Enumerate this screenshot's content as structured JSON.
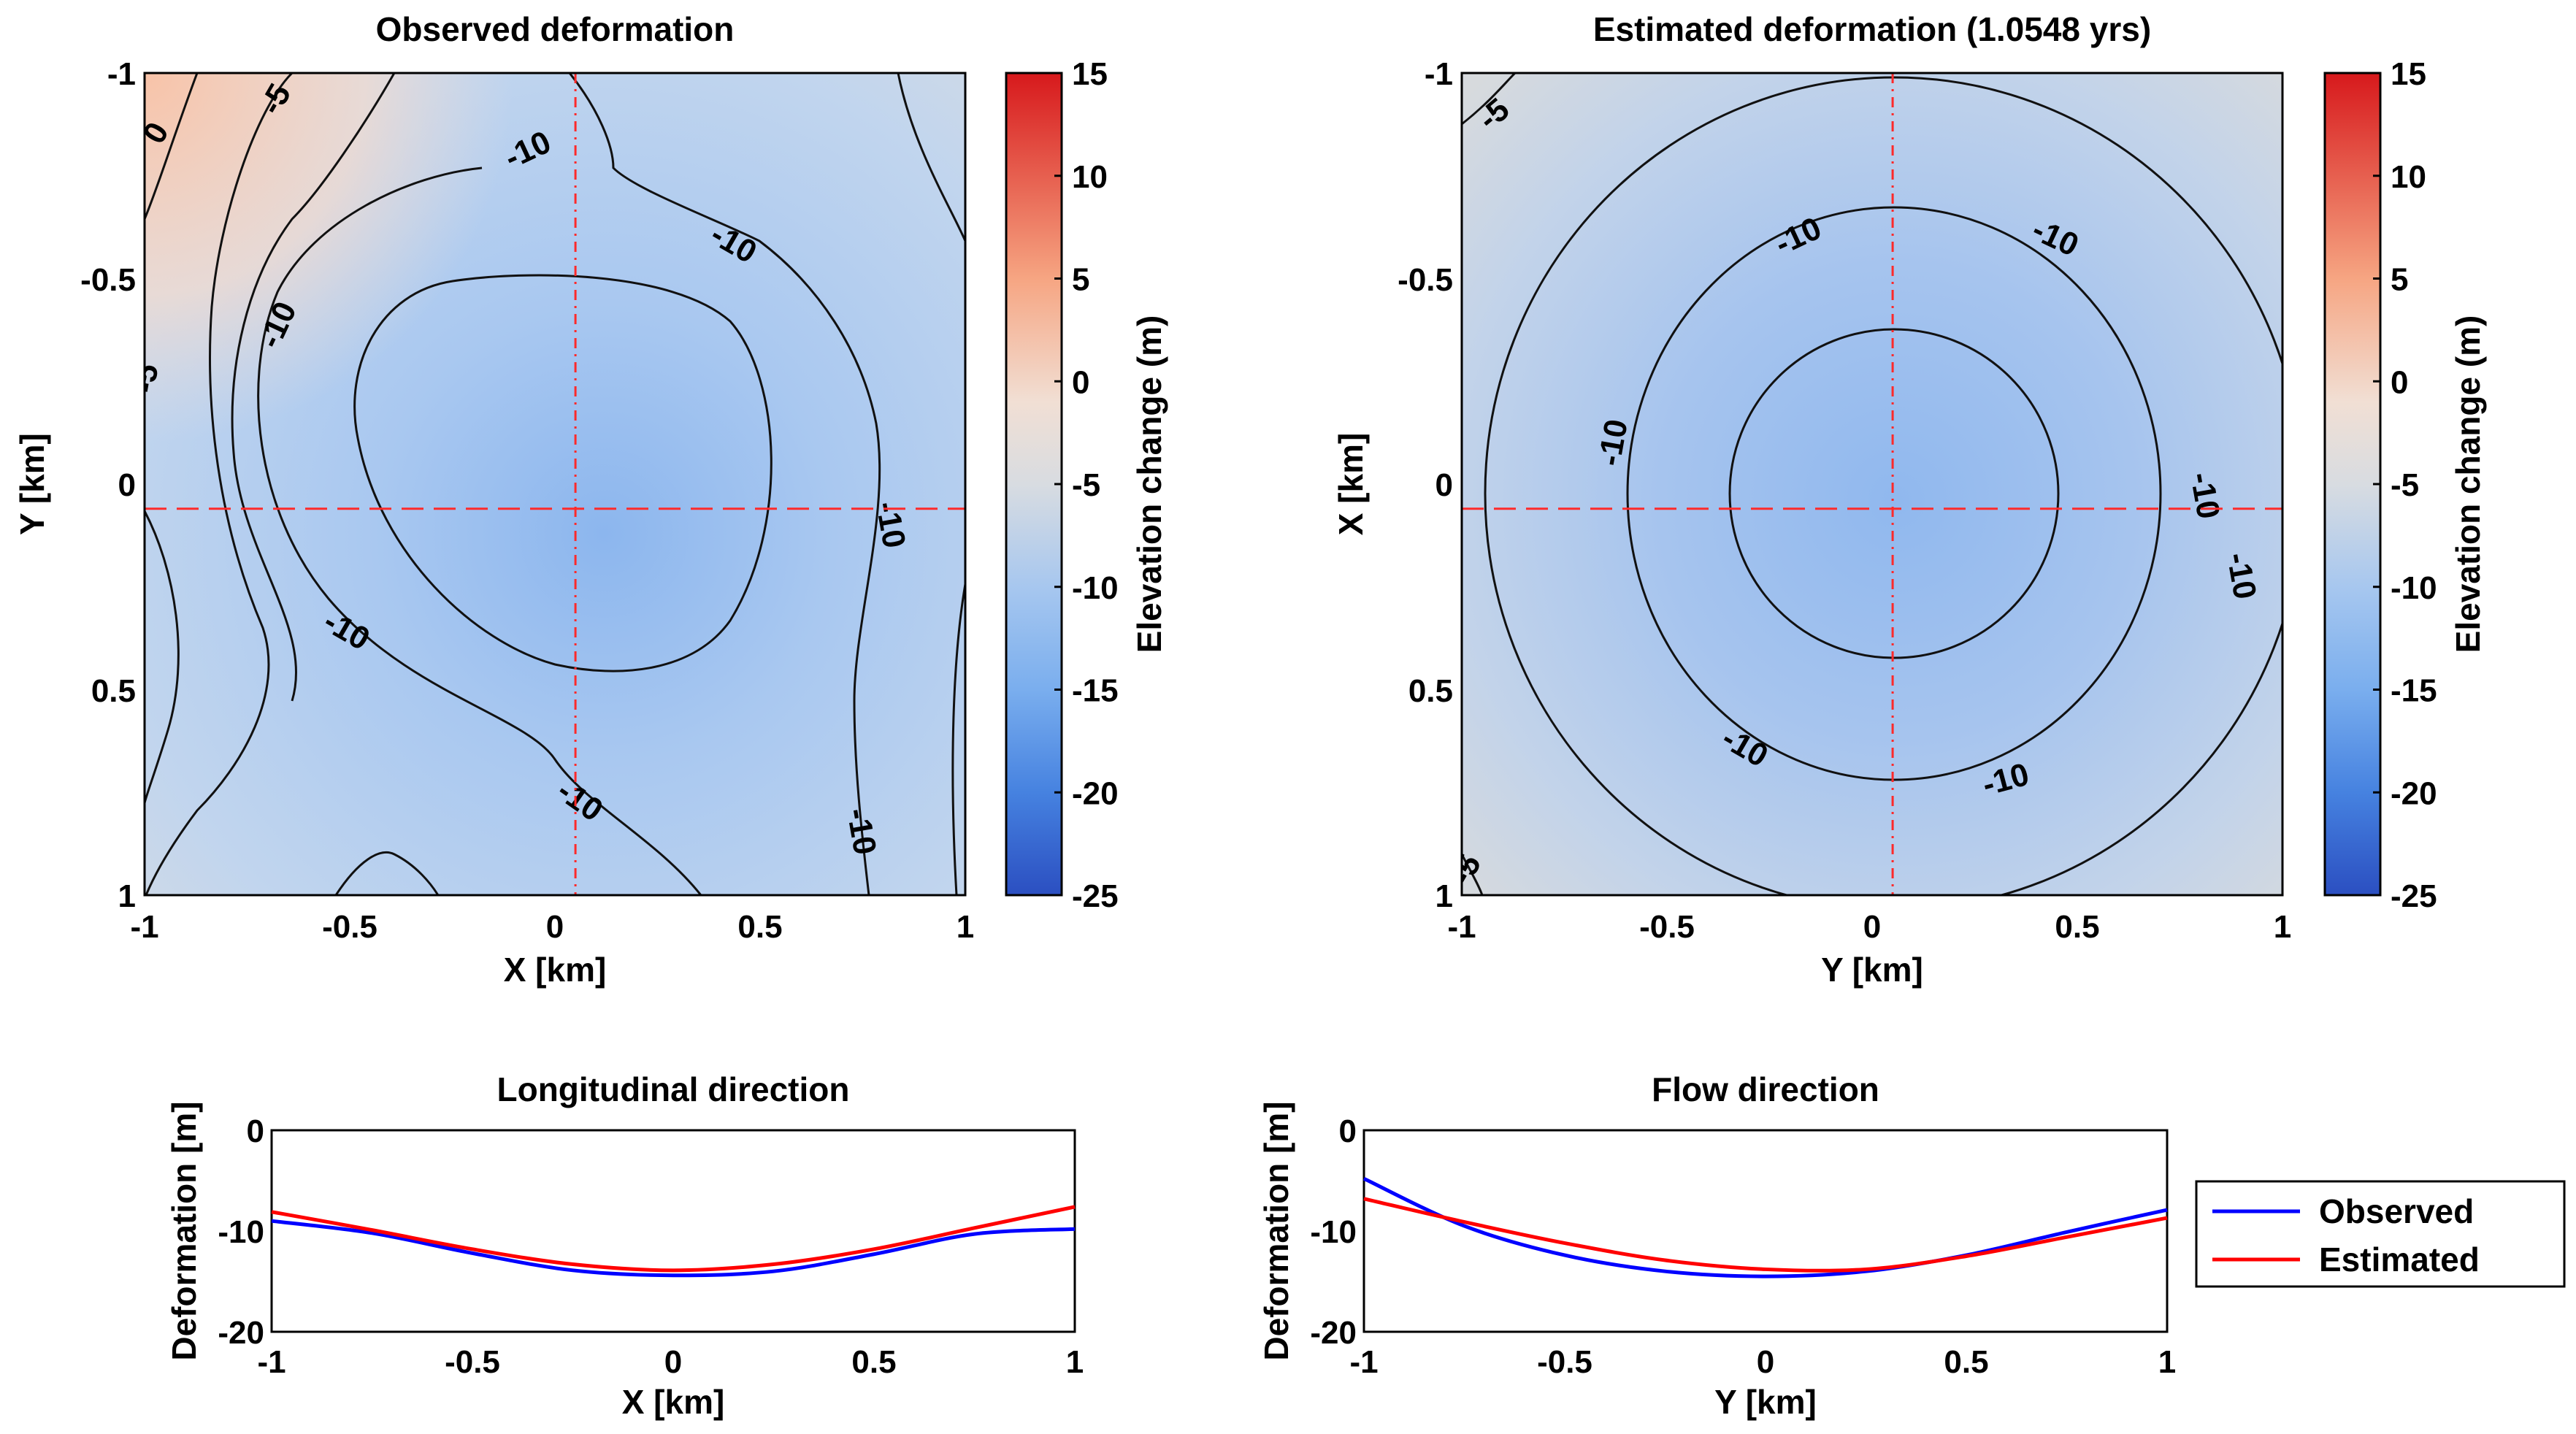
{
  "chart_data": [
    {
      "type": "heatmap",
      "title": "Observed deformation",
      "xlabel": "X [km]",
      "ylabel": "Y [km]",
      "xlim": [
        -1,
        1
      ],
      "ylim": [
        -1,
        1
      ],
      "xticks": [
        "-1",
        "-0.5",
        "0",
        "0.5",
        "1"
      ],
      "yticks": [
        "-1",
        "-0.5",
        "0",
        "0.5",
        "1"
      ],
      "crosshair": {
        "x": 0.05,
        "y": 0.06
      },
      "contour_labels": [
        "-10",
        "-10",
        "-10",
        "-10",
        "-10",
        "-10",
        "-10",
        "-5",
        "-5",
        "0"
      ],
      "colorbar": {
        "label": "Elevation change (m)",
        "ticks": [
          "15",
          "10",
          "5",
          "0",
          "-5",
          "-10",
          "-15",
          "-20",
          "-25"
        ],
        "range": [
          -25,
          15
        ]
      }
    },
    {
      "type": "heatmap",
      "title": "Estimated deformation (1.0548 yrs)",
      "xlabel": "Y [km]",
      "ylabel": "X [km]",
      "xlim": [
        -1,
        1
      ],
      "ylim": [
        -1,
        1
      ],
      "xticks": [
        "-1",
        "-0.5",
        "0",
        "0.5",
        "1"
      ],
      "yticks": [
        "-1",
        "-0.5",
        "0",
        "0.5",
        "1"
      ],
      "crosshair": {
        "x": 0.05,
        "y": 0.06
      },
      "contour_labels": [
        "-10",
        "-10",
        "-10",
        "-10",
        "-10",
        "-10",
        "-10",
        "-5",
        "-5"
      ],
      "colorbar": {
        "label": "Elevation change (m)",
        "ticks": [
          "15",
          "10",
          "5",
          "0",
          "-5",
          "-10",
          "-15",
          "-20",
          "-25"
        ],
        "range": [
          -25,
          15
        ]
      }
    },
    {
      "type": "line",
      "title": "Longitudinal direction",
      "xlabel": "X [km]",
      "ylabel": "Deformation [m]",
      "xlim": [
        -1,
        1
      ],
      "ylim": [
        -20,
        0
      ],
      "xticks": [
        "-1",
        "-0.5",
        "0",
        "0.5",
        "1"
      ],
      "yticks": [
        "0",
        "-10",
        "-20"
      ],
      "series": [
        {
          "name": "Observed",
          "color": "#0000ff",
          "x": [
            -1,
            -0.75,
            -0.5,
            -0.25,
            0,
            0.25,
            0.5,
            0.75,
            1
          ],
          "y": [
            -9,
            -10.2,
            -12.2,
            -13.9,
            -14.4,
            -14,
            -12.3,
            -10.3,
            -9.8
          ]
        },
        {
          "name": "Estimated",
          "color": "#ff0000",
          "x": [
            -1,
            -0.75,
            -0.5,
            -0.25,
            0,
            0.25,
            0.5,
            0.75,
            1
          ],
          "y": [
            -8.1,
            -9.9,
            -11.8,
            -13.3,
            -13.9,
            -13.3,
            -11.8,
            -9.7,
            -7.6
          ]
        }
      ]
    },
    {
      "type": "line",
      "title": "Flow direction",
      "xlabel": "Y [km]",
      "ylabel": "Deformation [m]",
      "xlim": [
        -1,
        1
      ],
      "ylim": [
        -20,
        0
      ],
      "xticks": [
        "-1",
        "-0.5",
        "0",
        "0.5",
        "1"
      ],
      "yticks": [
        "0",
        "-10",
        "-20"
      ],
      "series": [
        {
          "name": "Observed",
          "color": "#0000ff",
          "x": [
            -1,
            -0.75,
            -0.5,
            -0.25,
            0,
            0.25,
            0.5,
            0.75,
            1
          ],
          "y": [
            -4.8,
            -9.5,
            -12.4,
            -14,
            -14.5,
            -14,
            -12.4,
            -10.1,
            -7.9
          ]
        },
        {
          "name": "Estimated",
          "color": "#ff0000",
          "x": [
            -1,
            -0.75,
            -0.5,
            -0.25,
            0,
            0.25,
            0.5,
            0.75,
            1
          ],
          "y": [
            -6.8,
            -9.1,
            -11.2,
            -12.9,
            -13.8,
            -13.8,
            -12.5,
            -10.6,
            -8.7
          ]
        }
      ]
    }
  ],
  "legend": {
    "entries": [
      {
        "label": "Observed",
        "color": "#0000ff"
      },
      {
        "label": "Estimated",
        "color": "#ff0000"
      }
    ]
  }
}
